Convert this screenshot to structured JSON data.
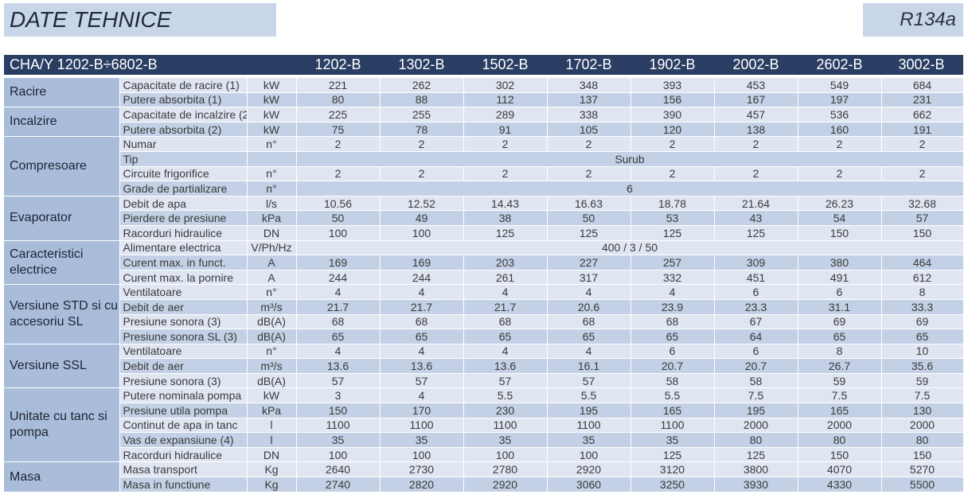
{
  "title": "DATE TEHNICE",
  "refrigerant": "R134a",
  "model_range": "CHA/Y 1202-B÷6802-B",
  "models": [
    "1202-B",
    "1302-B",
    "1502-B",
    "1702-B",
    "1902-B",
    "2002-B",
    "2602-B",
    "3002-B"
  ],
  "groups": [
    {
      "name": "Racire",
      "rows": [
        {
          "param": "Capacitate de racire (1)",
          "unit": "kW",
          "values": [
            "221",
            "262",
            "302",
            "348",
            "393",
            "453",
            "549",
            "684"
          ]
        },
        {
          "param": "Putere absorbita (1)",
          "unit": "kW",
          "values": [
            "80",
            "88",
            "112",
            "137",
            "156",
            "167",
            "197",
            "231"
          ]
        }
      ]
    },
    {
      "name": "Incalzire",
      "rows": [
        {
          "param": "Capacitate de incalzire (2)",
          "unit": "kW",
          "values": [
            "225",
            "255",
            "289",
            "338",
            "390",
            "457",
            "536",
            "662"
          ]
        },
        {
          "param": "Putere absorbita (2)",
          "unit": "kW",
          "values": [
            "75",
            "78",
            "91",
            "105",
            "120",
            "138",
            "160",
            "191"
          ]
        }
      ]
    },
    {
      "name": "Compresoare",
      "rows": [
        {
          "param": "Numar",
          "unit": "n°",
          "values": [
            "2",
            "2",
            "2",
            "2",
            "2",
            "2",
            "2",
            "2"
          ]
        },
        {
          "param": "Tip",
          "unit": "",
          "span": "Surub"
        },
        {
          "param": "Circuite frigorifice",
          "unit": "n°",
          "values": [
            "2",
            "2",
            "2",
            "2",
            "2",
            "2",
            "2",
            "2"
          ]
        },
        {
          "param": "Grade de partializare",
          "unit": "n°",
          "span": "6"
        }
      ]
    },
    {
      "name": "Evaporator",
      "rows": [
        {
          "param": "Debit de apa",
          "unit": "l/s",
          "values": [
            "10.56",
            "12.52",
            "14.43",
            "16.63",
            "18.78",
            "21.64",
            "26.23",
            "32.68"
          ]
        },
        {
          "param": "Pierdere de presiune",
          "unit": "kPa",
          "values": [
            "50",
            "49",
            "38",
            "50",
            "53",
            "43",
            "54",
            "57"
          ]
        },
        {
          "param": "Racorduri hidraulice",
          "unit": "DN",
          "values": [
            "100",
            "100",
            "125",
            "125",
            "125",
            "125",
            "150",
            "150"
          ]
        }
      ]
    },
    {
      "name": "Caracteristici electrice",
      "rows": [
        {
          "param": "Alimentare electrica",
          "unit": "V/Ph/Hz",
          "span": "400 / 3 / 50"
        },
        {
          "param": "Curent max. in funct.",
          "unit": "A",
          "values": [
            "169",
            "169",
            "203",
            "227",
            "257",
            "309",
            "380",
            "464"
          ]
        },
        {
          "param": "Curent max. la pornire",
          "unit": "A",
          "values": [
            "244",
            "244",
            "261",
            "317",
            "332",
            "451",
            "491",
            "612"
          ]
        }
      ]
    },
    {
      "name": "Versiune STD si cu accesoriu SL",
      "rows": [
        {
          "param": "Ventilatoare",
          "unit": "n°",
          "values": [
            "4",
            "4",
            "4",
            "4",
            "4",
            "6",
            "6",
            "8"
          ]
        },
        {
          "param": "Debit de aer",
          "unit": "m³/s",
          "values": [
            "21.7",
            "21.7",
            "21.7",
            "20.6",
            "23.9",
            "23.3",
            "31.1",
            "33.3"
          ]
        },
        {
          "param": "Presiune sonora (3)",
          "unit": "dB(A)",
          "values": [
            "68",
            "68",
            "68",
            "68",
            "68",
            "67",
            "69",
            "69"
          ]
        },
        {
          "param": "Presiune sonora SL (3)",
          "unit": "dB(A)",
          "values": [
            "65",
            "65",
            "65",
            "65",
            "65",
            "64",
            "65",
            "65"
          ]
        }
      ]
    },
    {
      "name": "Versiune SSL",
      "rows": [
        {
          "param": "Ventilatoare",
          "unit": "n°",
          "values": [
            "4",
            "4",
            "4",
            "4",
            "6",
            "6",
            "8",
            "10"
          ]
        },
        {
          "param": "Debit de aer",
          "unit": "m³/s",
          "values": [
            "13.6",
            "13.6",
            "13.6",
            "16.1",
            "20.7",
            "20.7",
            "26.7",
            "35.6"
          ]
        },
        {
          "param": "Presiune sonora (3)",
          "unit": "dB(A)",
          "values": [
            "57",
            "57",
            "57",
            "57",
            "58",
            "58",
            "59",
            "59"
          ]
        }
      ]
    },
    {
      "name": "Unitate cu tanc si pompa",
      "rows": [
        {
          "param": "Putere nominala pompa",
          "unit": "kW",
          "values": [
            "3",
            "4",
            "5.5",
            "5.5",
            "5.5",
            "7.5",
            "7.5",
            "7.5"
          ]
        },
        {
          "param": "Presiune utila pompa",
          "unit": "kPa",
          "values": [
            "150",
            "170",
            "230",
            "195",
            "165",
            "195",
            "165",
            "130"
          ]
        },
        {
          "param": "Continut de apa in tanc",
          "unit": "l",
          "values": [
            "1100",
            "1100",
            "1100",
            "1100",
            "1100",
            "2000",
            "2000",
            "2000"
          ]
        },
        {
          "param": "Vas de expansiune (4)",
          "unit": "l",
          "values": [
            "35",
            "35",
            "35",
            "35",
            "35",
            "80",
            "80",
            "80"
          ]
        },
        {
          "param": "Racorduri hidraulice",
          "unit": "DN",
          "values": [
            "100",
            "100",
            "100",
            "100",
            "125",
            "125",
            "150",
            "150"
          ]
        }
      ]
    },
    {
      "name": "Masa",
      "rows": [
        {
          "param": "Masa transport",
          "unit": "Kg",
          "values": [
            "2640",
            "2730",
            "2780",
            "2920",
            "3120",
            "3800",
            "4070",
            "5270"
          ]
        },
        {
          "param": "Masa in functiune",
          "unit": "Kg",
          "values": [
            "2740",
            "2820",
            "2920",
            "3060",
            "3250",
            "3930",
            "4330",
            "5500"
          ]
        }
      ]
    }
  ]
}
